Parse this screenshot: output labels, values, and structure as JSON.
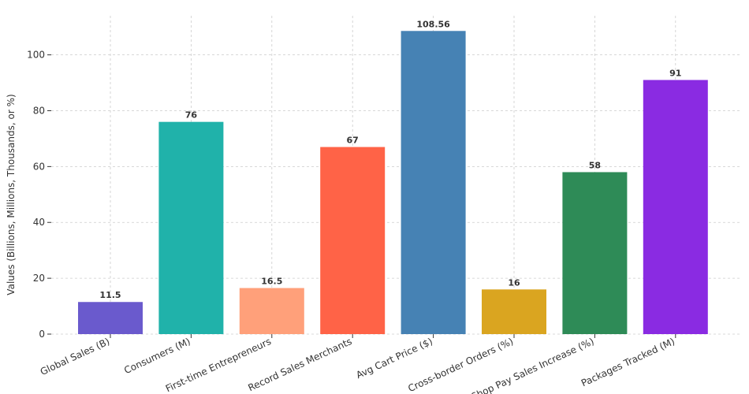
{
  "chart_data": {
    "type": "bar",
    "y_label": "Values (Billions, Millions, Thousands, or %)",
    "categories": [
      "Global Sales (B)",
      "Consumers (M)",
      "First-time Entrepreneurs",
      "Record Sales Merchants",
      "Avg Cart Price ($)",
      "Cross-border Orders (%)",
      "Shop Pay Sales Increase (%)",
      "Packages Tracked (M)"
    ],
    "values": [
      11.5,
      76,
      16.5,
      67,
      108.56,
      16,
      58,
      91
    ],
    "colors": [
      "#6a5acd",
      "#20b2aa",
      "#ffa07a",
      "#ff6347",
      "#4682b4",
      "#daa520",
      "#2e8b57",
      "#8a2be2"
    ],
    "ylim": [
      0,
      114
    ],
    "yticks": [
      0,
      20,
      40,
      60,
      80,
      100
    ],
    "grid": true
  }
}
